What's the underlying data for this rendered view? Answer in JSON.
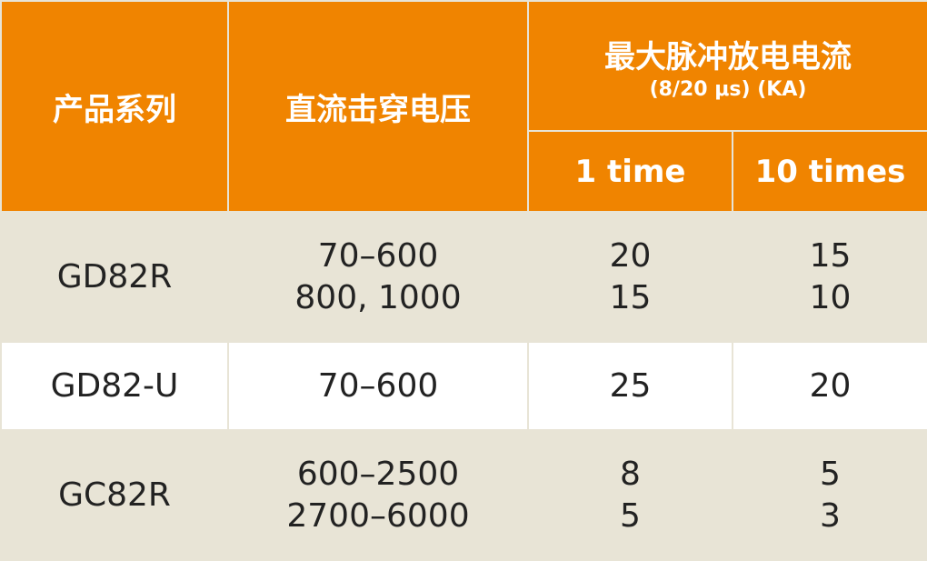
{
  "header": {
    "series": "产品系列",
    "dc_voltage": "直流击穿电压",
    "max_current": "最大脉冲放电电流",
    "max_current_unit": "(8/20 μs) (KA)",
    "one_time": "1 time",
    "ten_times": "10 times"
  },
  "rows": [
    {
      "series": "GD82R",
      "voltage": [
        "70–600",
        "800, 1000"
      ],
      "one": [
        "20",
        "15"
      ],
      "ten": [
        "15",
        "10"
      ]
    },
    {
      "series": "GD82-U",
      "voltage": [
        "70–600"
      ],
      "one": [
        "25"
      ],
      "ten": [
        "20"
      ]
    },
    {
      "series": "GC82R",
      "voltage": [
        "600–2500",
        "2700–6000"
      ],
      "one": [
        "8",
        "5"
      ],
      "ten": [
        "5",
        "3"
      ]
    }
  ],
  "colors": {
    "header": "#f08400",
    "row_alt": "#e8e4d6",
    "border": "#e8e4d6"
  }
}
